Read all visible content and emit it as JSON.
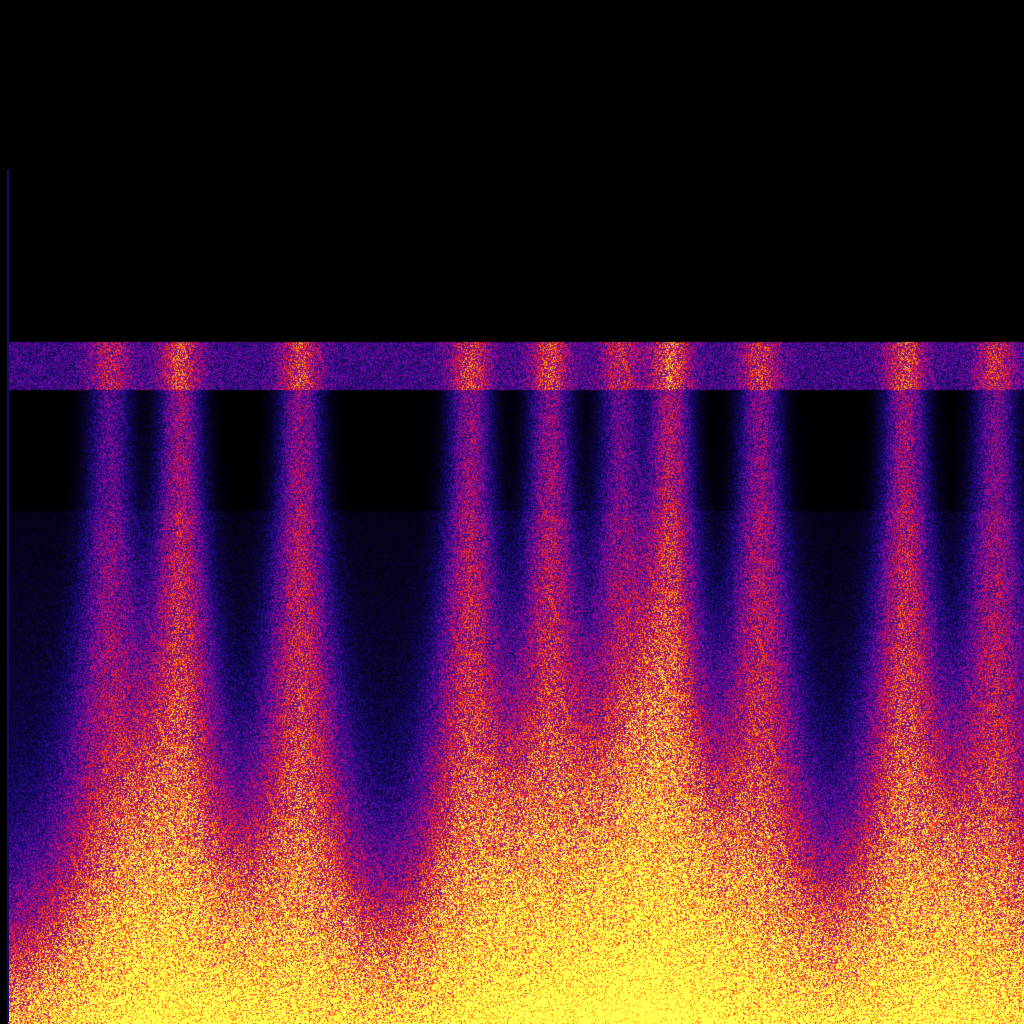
{
  "image": {
    "kind": "spectrogram",
    "colormap": [
      "#000000",
      "#1c0a80",
      "#7a0aa0",
      "#c8106a",
      "#ff2a10",
      "#ff9a00",
      "#ffff50"
    ],
    "background": "#000000"
  }
}
